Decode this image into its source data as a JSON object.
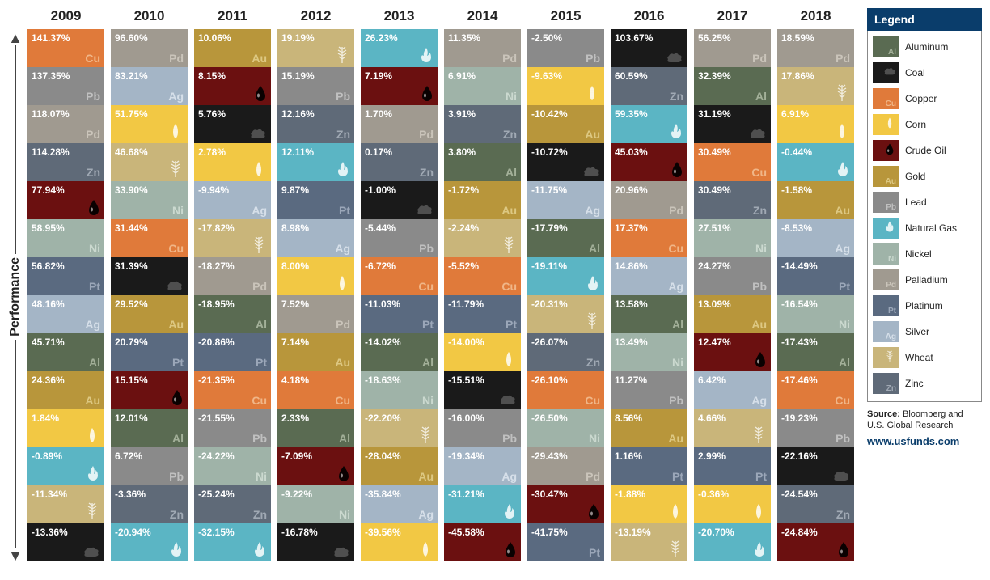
{
  "axis_label": "Performance",
  "years": [
    "2009",
    "2010",
    "2011",
    "2012",
    "2013",
    "2014",
    "2015",
    "2016",
    "2017",
    "2018"
  ],
  "commodities": {
    "Al": {
      "name": "Aluminum",
      "bg": "#5a6b52",
      "symColor": "#b8c4ad",
      "symbol": "Al",
      "icon": null
    },
    "Coal": {
      "name": "Coal",
      "bg": "#1a1a1a",
      "symColor": "#888888",
      "symbol": null,
      "icon": "coal"
    },
    "Cu": {
      "name": "Copper",
      "bg": "#e07a3a",
      "symColor": "#f5c89e",
      "symbol": "Cu",
      "icon": null
    },
    "Corn": {
      "name": "Corn",
      "bg": "#f2c844",
      "symColor": "#ffffff",
      "symbol": null,
      "icon": "corn"
    },
    "Oil": {
      "name": "Crude Oil",
      "bg": "#6b1010",
      "symColor": "#222222",
      "symbol": null,
      "icon": "oil"
    },
    "Au": {
      "name": "Gold",
      "bg": "#b8963b",
      "symColor": "#e8d697",
      "symbol": "Au",
      "icon": null
    },
    "Pb": {
      "name": "Lead",
      "bg": "#8a8a8a",
      "symColor": "#d0d0d0",
      "symbol": "Pb",
      "icon": null
    },
    "Gas": {
      "name": "Natural Gas",
      "bg": "#5bb5c4",
      "symColor": "#ffffff",
      "symbol": null,
      "icon": "gas"
    },
    "Ni": {
      "name": "Nickel",
      "bg": "#9fb3a8",
      "symColor": "#d8e4db",
      "symbol": "Ni",
      "icon": null
    },
    "Pd": {
      "name": "Palladium",
      "bg": "#a09a90",
      "symColor": "#d6d1c6",
      "symbol": "Pd",
      "icon": null
    },
    "Pt": {
      "name": "Platinum",
      "bg": "#5a6a80",
      "symColor": "#aeb9c9",
      "symbol": "Pt",
      "icon": null
    },
    "Ag": {
      "name": "Silver",
      "bg": "#a4b5c6",
      "symColor": "#e4ecf3",
      "symbol": "Ag",
      "icon": null
    },
    "Wheat": {
      "name": "Wheat",
      "bg": "#c9b57a",
      "symColor": "#ffffff",
      "symbol": null,
      "icon": "wheat"
    },
    "Zn": {
      "name": "Zinc",
      "bg": "#5f6a78",
      "symColor": "#b3bbc6",
      "symbol": "Zn",
      "icon": null
    }
  },
  "legend_order": [
    "Al",
    "Coal",
    "Cu",
    "Corn",
    "Oil",
    "Au",
    "Pb",
    "Gas",
    "Ni",
    "Pd",
    "Pt",
    "Ag",
    "Wheat",
    "Zn"
  ],
  "legend_title": "Legend",
  "source_label": "Source:",
  "source_text": "Bloomberg and U.S. Global Research",
  "source_link": "www.usfunds.com",
  "grid": {
    "2009": [
      {
        "c": "Cu",
        "v": "141.37%"
      },
      {
        "c": "Pb",
        "v": "137.35%"
      },
      {
        "c": "Pd",
        "v": "118.07%"
      },
      {
        "c": "Zn",
        "v": "114.28%"
      },
      {
        "c": "Oil",
        "v": "77.94%"
      },
      {
        "c": "Ni",
        "v": "58.95%"
      },
      {
        "c": "Pt",
        "v": "56.82%"
      },
      {
        "c": "Ag",
        "v": "48.16%"
      },
      {
        "c": "Al",
        "v": "45.71%"
      },
      {
        "c": "Au",
        "v": "24.36%"
      },
      {
        "c": "Corn",
        "v": "1.84%"
      },
      {
        "c": "Gas",
        "v": "-0.89%"
      },
      {
        "c": "Wheat",
        "v": "-11.34%"
      },
      {
        "c": "Coal",
        "v": "-13.36%"
      }
    ],
    "2010": [
      {
        "c": "Pd",
        "v": "96.60%"
      },
      {
        "c": "Ag",
        "v": "83.21%"
      },
      {
        "c": "Corn",
        "v": "51.75%"
      },
      {
        "c": "Wheat",
        "v": "46.68%"
      },
      {
        "c": "Ni",
        "v": "33.90%"
      },
      {
        "c": "Cu",
        "v": "31.44%"
      },
      {
        "c": "Coal",
        "v": "31.39%"
      },
      {
        "c": "Au",
        "v": "29.52%"
      },
      {
        "c": "Pt",
        "v": "20.79%"
      },
      {
        "c": "Oil",
        "v": "15.15%"
      },
      {
        "c": "Al",
        "v": "12.01%"
      },
      {
        "c": "Pb",
        "v": "6.72%"
      },
      {
        "c": "Zn",
        "v": "-3.36%"
      },
      {
        "c": "Gas",
        "v": "-20.94%"
      }
    ],
    "2011": [
      {
        "c": "Au",
        "v": "10.06%"
      },
      {
        "c": "Oil",
        "v": "8.15%"
      },
      {
        "c": "Coal",
        "v": "5.76%"
      },
      {
        "c": "Corn",
        "v": "2.78%"
      },
      {
        "c": "Ag",
        "v": "-9.94%"
      },
      {
        "c": "Wheat",
        "v": "-17.82%"
      },
      {
        "c": "Pd",
        "v": "-18.27%"
      },
      {
        "c": "Al",
        "v": "-18.95%"
      },
      {
        "c": "Pt",
        "v": "-20.86%"
      },
      {
        "c": "Cu",
        "v": "-21.35%"
      },
      {
        "c": "Pb",
        "v": "-21.55%"
      },
      {
        "c": "Ni",
        "v": "-24.22%"
      },
      {
        "c": "Zn",
        "v": "-25.24%"
      },
      {
        "c": "Gas",
        "v": "-32.15%"
      }
    ],
    "2012": [
      {
        "c": "Wheat",
        "v": "19.19%"
      },
      {
        "c": "Pb",
        "v": "15.19%"
      },
      {
        "c": "Zn",
        "v": "12.16%"
      },
      {
        "c": "Gas",
        "v": "12.11%"
      },
      {
        "c": "Pt",
        "v": "9.87%"
      },
      {
        "c": "Ag",
        "v": "8.98%"
      },
      {
        "c": "Corn",
        "v": "8.00%"
      },
      {
        "c": "Pd",
        "v": "7.52%"
      },
      {
        "c": "Au",
        "v": "7.14%"
      },
      {
        "c": "Cu",
        "v": "4.18%"
      },
      {
        "c": "Al",
        "v": "2.33%"
      },
      {
        "c": "Oil",
        "v": "-7.09%"
      },
      {
        "c": "Ni",
        "v": "-9.22%"
      },
      {
        "c": "Coal",
        "v": "-16.78%"
      }
    ],
    "2013": [
      {
        "c": "Gas",
        "v": "26.23%"
      },
      {
        "c": "Oil",
        "v": "7.19%"
      },
      {
        "c": "Pd",
        "v": "1.70%"
      },
      {
        "c": "Zn",
        "v": "0.17%"
      },
      {
        "c": "Coal",
        "v": "-1.00%"
      },
      {
        "c": "Pb",
        "v": "-5.44%"
      },
      {
        "c": "Cu",
        "v": "-6.72%"
      },
      {
        "c": "Pt",
        "v": "-11.03%"
      },
      {
        "c": "Al",
        "v": "-14.02%"
      },
      {
        "c": "Ni",
        "v": "-18.63%"
      },
      {
        "c": "Wheat",
        "v": "-22.20%"
      },
      {
        "c": "Au",
        "v": "-28.04%"
      },
      {
        "c": "Ag",
        "v": "-35.84%"
      },
      {
        "c": "Corn",
        "v": "-39.56%"
      }
    ],
    "2014": [
      {
        "c": "Pd",
        "v": "11.35%"
      },
      {
        "c": "Ni",
        "v": "6.91%"
      },
      {
        "c": "Zn",
        "v": "3.91%"
      },
      {
        "c": "Al",
        "v": "3.80%"
      },
      {
        "c": "Au",
        "v": "-1.72%"
      },
      {
        "c": "Wheat",
        "v": "-2.24%"
      },
      {
        "c": "Cu",
        "v": "-5.52%"
      },
      {
        "c": "Pt",
        "v": "-11.79%"
      },
      {
        "c": "Corn",
        "v": "-14.00%"
      },
      {
        "c": "Coal",
        "v": "-15.51%"
      },
      {
        "c": "Pb",
        "v": "-16.00%"
      },
      {
        "c": "Ag",
        "v": "-19.34%"
      },
      {
        "c": "Gas",
        "v": "-31.21%"
      },
      {
        "c": "Oil",
        "v": "-45.58%"
      }
    ],
    "2015": [
      {
        "c": "Pb",
        "v": "-2.50%"
      },
      {
        "c": "Corn",
        "v": "-9.63%"
      },
      {
        "c": "Au",
        "v": "-10.42%"
      },
      {
        "c": "Coal",
        "v": "-10.72%"
      },
      {
        "c": "Ag",
        "v": "-11.75%"
      },
      {
        "c": "Al",
        "v": "-17.79%"
      },
      {
        "c": "Gas",
        "v": "-19.11%"
      },
      {
        "c": "Wheat",
        "v": "-20.31%"
      },
      {
        "c": "Zn",
        "v": "-26.07%"
      },
      {
        "c": "Cu",
        "v": "-26.10%"
      },
      {
        "c": "Ni",
        "v": "-26.50%"
      },
      {
        "c": "Pd",
        "v": "-29.43%"
      },
      {
        "c": "Oil",
        "v": "-30.47%"
      },
      {
        "c": "Pt",
        "v": "-41.75%"
      }
    ],
    "2016": [
      {
        "c": "Coal",
        "v": "103.67%"
      },
      {
        "c": "Zn",
        "v": "60.59%"
      },
      {
        "c": "Gas",
        "v": "59.35%"
      },
      {
        "c": "Oil",
        "v": "45.03%"
      },
      {
        "c": "Pd",
        "v": "20.96%"
      },
      {
        "c": "Cu",
        "v": "17.37%"
      },
      {
        "c": "Ag",
        "v": "14.86%"
      },
      {
        "c": "Al",
        "v": "13.58%"
      },
      {
        "c": "Ni",
        "v": "13.49%"
      },
      {
        "c": "Pb",
        "v": "11.27%"
      },
      {
        "c": "Au",
        "v": "8.56%"
      },
      {
        "c": "Pt",
        "v": "1.16%"
      },
      {
        "c": "Corn",
        "v": "-1.88%"
      },
      {
        "c": "Wheat",
        "v": "-13.19%"
      }
    ],
    "2017": [
      {
        "c": "Pd",
        "v": "56.25%"
      },
      {
        "c": "Al",
        "v": "32.39%"
      },
      {
        "c": "Coal",
        "v": "31.19%"
      },
      {
        "c": "Cu",
        "v": "30.49%"
      },
      {
        "c": "Zn",
        "v": "30.49%"
      },
      {
        "c": "Ni",
        "v": "27.51%"
      },
      {
        "c": "Pb",
        "v": "24.27%"
      },
      {
        "c": "Au",
        "v": "13.09%"
      },
      {
        "c": "Oil",
        "v": "12.47%"
      },
      {
        "c": "Ag",
        "v": "6.42%"
      },
      {
        "c": "Wheat",
        "v": "4.66%"
      },
      {
        "c": "Pt",
        "v": "2.99%"
      },
      {
        "c": "Corn",
        "v": "-0.36%"
      },
      {
        "c": "Gas",
        "v": "-20.70%"
      }
    ],
    "2018": [
      {
        "c": "Pd",
        "v": "18.59%"
      },
      {
        "c": "Wheat",
        "v": "17.86%"
      },
      {
        "c": "Corn",
        "v": "6.91%"
      },
      {
        "c": "Gas",
        "v": "-0.44%"
      },
      {
        "c": "Au",
        "v": "-1.58%"
      },
      {
        "c": "Ag",
        "v": "-8.53%"
      },
      {
        "c": "Pt",
        "v": "-14.49%"
      },
      {
        "c": "Ni",
        "v": "-16.54%"
      },
      {
        "c": "Al",
        "v": "-17.43%"
      },
      {
        "c": "Cu",
        "v": "-17.46%"
      },
      {
        "c": "Pb",
        "v": "-19.23%"
      },
      {
        "c": "Coal",
        "v": "-22.16%"
      },
      {
        "c": "Zn",
        "v": "-24.54%"
      },
      {
        "c": "Oil",
        "v": "-24.84%"
      }
    ]
  },
  "icons": {
    "coal": "<svg width='22' height='16' viewBox='0 0 22 16'><path fill='#555' d='M3 10 Q1 8 4 6 Q6 2 10 4 Q14 1 16 5 Q21 5 19 10 Q21 13 16 14 L6 14 Q1 14 3 10 Z'/></svg>",
    "corn": "<svg width='20' height='22' viewBox='0 0 20 22'><path fill='#fff' opacity='0.9' d='M10 2 Q13 6 13 12 Q13 18 10 20 Q7 18 7 12 Q7 6 10 2 Z'/><path stroke='#fff' stroke-width='1' opacity='0.6' fill='none' d='M8 6 L12 6 M7.5 9 L12.5 9 M7.5 12 L12.5 12 M8 15 L12 15'/></svg>",
    "oil": "<svg width='16' height='22' viewBox='0 0 16 22'><path fill='#000' d='M8 2 Q14 10 14 15 A6 6 0 0 1 2 15 Q2 10 8 2 Z'/><ellipse cx='5.5' cy='14' rx='1.5' ry='2.5' fill='#fff' opacity='0.6'/></svg>",
    "gas": "<svg width='18' height='22' viewBox='0 0 18 22'><path fill='#fff' opacity='0.92' d='M9 2 Q5 8 6 12 Q3 10 3 14 A6 6 0 0 0 15 14 Q15 9 12 7 Q13 11 10 12 Q12 7 9 2 Z'/></svg>",
    "wheat": "<svg width='20' height='24' viewBox='0 0 20 24'><path stroke='#fff' stroke-width='1.3' fill='none' opacity='0.85' d='M10 23 L10 3 M10 6 L6 3 M10 6 L14 3 M10 10 L5 7 M10 10 L15 7 M10 14 L5 11 M10 14 L15 11 M10 18 L6 15 M10 18 L14 15'/></svg>"
  }
}
